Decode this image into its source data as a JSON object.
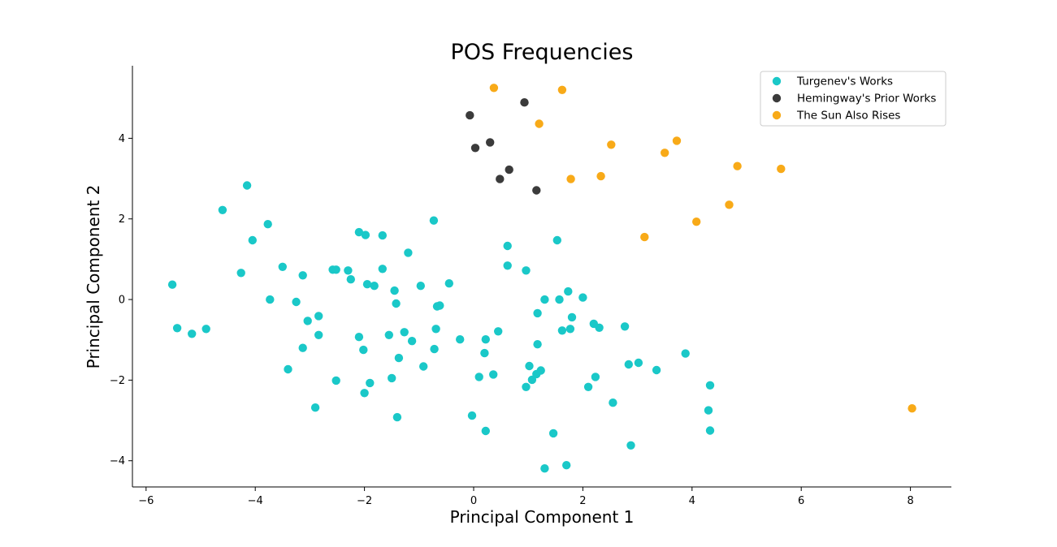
{
  "chart_data": {
    "type": "scatter",
    "title": "POS Frequencies",
    "xlabel": "Principal Component 1",
    "ylabel": "Principal Component 2",
    "xlim": [
      -6.25,
      8.75
    ],
    "ylim": [
      -4.65,
      5.8
    ],
    "xticks": [
      -6,
      -4,
      -2,
      0,
      2,
      4,
      6,
      8
    ],
    "yticks": [
      -4,
      -2,
      0,
      2,
      4
    ],
    "grid": false,
    "legend_position": "top-right",
    "series": [
      {
        "name": "Turgenev's Works",
        "color": "#1ac8c8",
        "points": [
          [
            -5.52,
            0.37
          ],
          [
            -5.43,
            -0.71
          ],
          [
            -5.16,
            -0.85
          ],
          [
            -4.9,
            -0.73
          ],
          [
            -4.6,
            2.22
          ],
          [
            -4.15,
            2.83
          ],
          [
            -4.05,
            1.47
          ],
          [
            -4.26,
            0.66
          ],
          [
            -3.77,
            1.87
          ],
          [
            -3.73,
            0.0
          ],
          [
            -3.5,
            0.81
          ],
          [
            -3.4,
            -1.73
          ],
          [
            -3.25,
            -0.06
          ],
          [
            -3.13,
            0.6
          ],
          [
            -3.13,
            -1.2
          ],
          [
            -3.04,
            -0.53
          ],
          [
            -2.9,
            -2.68
          ],
          [
            -2.84,
            -0.41
          ],
          [
            -2.84,
            -0.88
          ],
          [
            -2.58,
            0.74
          ],
          [
            -2.52,
            0.74
          ],
          [
            -2.52,
            -2.01
          ],
          [
            -2.3,
            0.72
          ],
          [
            -2.25,
            0.5
          ],
          [
            -2.1,
            1.67
          ],
          [
            -2.1,
            -0.93
          ],
          [
            -2.02,
            -1.25
          ],
          [
            -1.98,
            1.6
          ],
          [
            -2.0,
            -2.32
          ],
          [
            -1.95,
            0.38
          ],
          [
            -1.9,
            -2.07
          ],
          [
            -1.82,
            0.34
          ],
          [
            -1.67,
            1.59
          ],
          [
            -1.67,
            0.76
          ],
          [
            -1.55,
            -0.88
          ],
          [
            -1.5,
            -1.95
          ],
          [
            -1.45,
            0.22
          ],
          [
            -1.42,
            -0.1
          ],
          [
            -1.4,
            -2.92
          ],
          [
            -1.37,
            -1.45
          ],
          [
            -1.27,
            -0.81
          ],
          [
            -1.2,
            1.16
          ],
          [
            -1.13,
            -1.03
          ],
          [
            -0.97,
            0.34
          ],
          [
            -0.92,
            -1.66
          ],
          [
            -0.73,
            1.96
          ],
          [
            -0.72,
            -1.23
          ],
          [
            -0.69,
            -0.73
          ],
          [
            -0.67,
            -0.17
          ],
          [
            -0.62,
            -0.15
          ],
          [
            -0.45,
            0.4
          ],
          [
            -0.25,
            -0.99
          ],
          [
            -0.03,
            -2.88
          ],
          [
            0.1,
            -1.92
          ],
          [
            0.2,
            -1.33
          ],
          [
            0.22,
            -0.99
          ],
          [
            0.22,
            -3.26
          ],
          [
            0.36,
            -1.86
          ],
          [
            0.45,
            -0.79
          ],
          [
            0.62,
            1.33
          ],
          [
            0.62,
            0.84
          ],
          [
            0.96,
            0.72
          ],
          [
            0.96,
            -2.17
          ],
          [
            1.02,
            -1.65
          ],
          [
            1.07,
            -1.99
          ],
          [
            1.15,
            -1.85
          ],
          [
            1.17,
            -0.34
          ],
          [
            1.17,
            -1.11
          ],
          [
            1.23,
            -1.76
          ],
          [
            1.3,
            0.0
          ],
          [
            1.3,
            -4.19
          ],
          [
            1.46,
            -3.32
          ],
          [
            1.53,
            1.47
          ],
          [
            1.57,
            0.0
          ],
          [
            1.62,
            -0.77
          ],
          [
            1.7,
            -4.11
          ],
          [
            1.73,
            0.2
          ],
          [
            1.77,
            -0.73
          ],
          [
            1.8,
            -0.44
          ],
          [
            2.0,
            0.05
          ],
          [
            2.1,
            -2.17
          ],
          [
            2.2,
            -0.6
          ],
          [
            2.23,
            -1.92
          ],
          [
            2.3,
            -0.7
          ],
          [
            2.55,
            -2.56
          ],
          [
            2.77,
            -0.67
          ],
          [
            2.84,
            -1.61
          ],
          [
            2.88,
            -3.62
          ],
          [
            3.02,
            -1.57
          ],
          [
            3.35,
            -1.75
          ],
          [
            3.88,
            -1.34
          ],
          [
            4.3,
            -2.75
          ],
          [
            4.33,
            -2.13
          ],
          [
            4.33,
            -3.25
          ]
        ]
      },
      {
        "name": "Hemingway's Prior Works",
        "color": "#3b3b3b",
        "points": [
          [
            -0.07,
            4.57
          ],
          [
            0.03,
            3.76
          ],
          [
            0.3,
            3.9
          ],
          [
            0.48,
            2.99
          ],
          [
            0.65,
            3.22
          ],
          [
            0.93,
            4.89
          ],
          [
            1.15,
            2.71
          ]
        ]
      },
      {
        "name": "The Sun Also Rises",
        "color": "#f8aa18",
        "points": [
          [
            0.37,
            5.25
          ],
          [
            1.2,
            4.36
          ],
          [
            1.62,
            5.2
          ],
          [
            1.78,
            2.99
          ],
          [
            2.33,
            3.06
          ],
          [
            2.52,
            3.84
          ],
          [
            3.13,
            1.55
          ],
          [
            3.5,
            3.64
          ],
          [
            3.72,
            3.94
          ],
          [
            4.08,
            1.93
          ],
          [
            4.68,
            2.35
          ],
          [
            4.83,
            3.31
          ],
          [
            5.63,
            3.24
          ],
          [
            8.03,
            -2.7
          ]
        ]
      }
    ]
  }
}
